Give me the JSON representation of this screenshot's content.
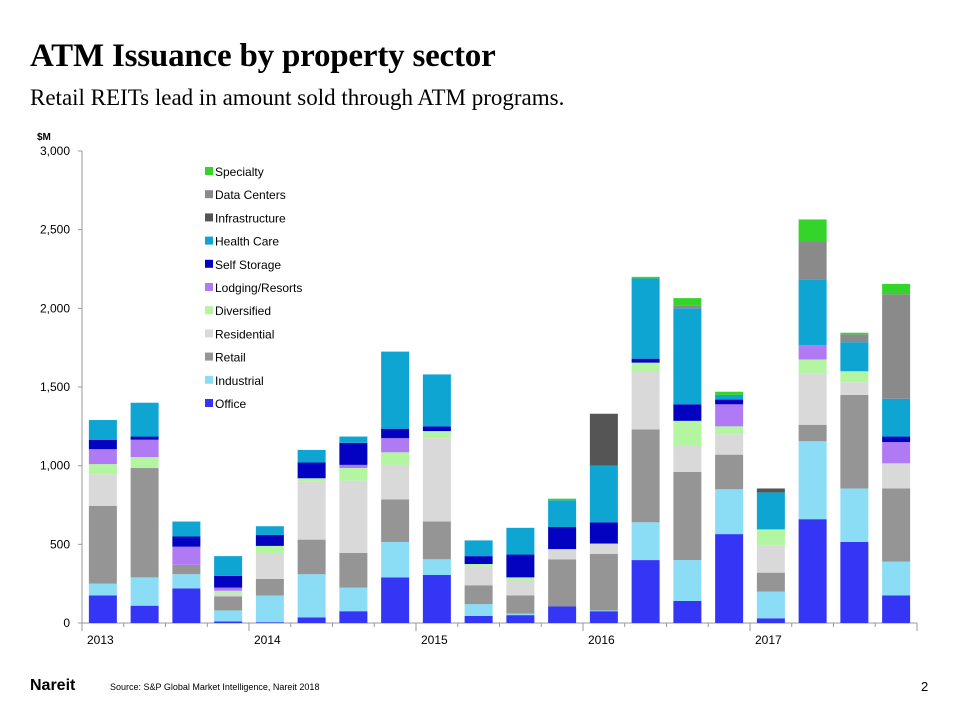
{
  "slide": {
    "title": "ATM Issuance by property sector",
    "subtitle": "Retail REITs lead in amount sold through ATM programs.",
    "logo": "Nareit",
    "source": "Source: S&P Global Market Intelligence, Nareit 2018",
    "page_number": "2"
  },
  "chart_data": {
    "type": "bar",
    "stacked": true,
    "ylabel": "$M",
    "ylim": [
      0,
      3000
    ],
    "yticks": [
      0,
      500,
      1000,
      1500,
      2000,
      2500,
      3000
    ],
    "ytick_labels": [
      "0",
      "500",
      "1,000",
      "1,500",
      "2,000",
      "2,500",
      "3,000"
    ],
    "x_tick_labels": [
      {
        "label": "2013",
        "index": 0
      },
      {
        "label": "2014",
        "index": 4
      },
      {
        "label": "2015",
        "index": 8
      },
      {
        "label": "2016",
        "index": 12
      },
      {
        "label": "2017",
        "index": 16
      }
    ],
    "legend_position": "top-left",
    "series": [
      {
        "name": "Office",
        "color": "#3535f5",
        "values": [
          175,
          110,
          220,
          10,
          5,
          35,
          75,
          290,
          305,
          45,
          50,
          105,
          75,
          400,
          140,
          565,
          30,
          660,
          515,
          175
        ]
      },
      {
        "name": "Industrial",
        "color": "#8bdcf5",
        "values": [
          75,
          180,
          90,
          70,
          170,
          275,
          150,
          225,
          100,
          75,
          10,
          0,
          5,
          240,
          260,
          285,
          170,
          495,
          340,
          215
        ]
      },
      {
        "name": "Retail",
        "color": "#959595",
        "values": [
          495,
          695,
          60,
          90,
          105,
          220,
          220,
          270,
          240,
          120,
          115,
          300,
          360,
          590,
          560,
          220,
          120,
          105,
          595,
          465
        ]
      },
      {
        "name": "Residential",
        "color": "#d9d9d9",
        "values": [
          200,
          0,
          0,
          20,
          165,
          370,
          460,
          220,
          530,
          120,
          95,
          65,
          65,
          365,
          165,
          130,
          175,
          325,
          80,
          160
        ]
      },
      {
        "name": "Diversified",
        "color": "#b3f5a1",
        "values": [
          65,
          70,
          0,
          15,
          45,
          20,
          80,
          80,
          45,
          15,
          20,
          0,
          0,
          60,
          160,
          50,
          100,
          90,
          70,
          0
        ]
      },
      {
        "name": "Lodging/Resorts",
        "color": "#b07af5",
        "values": [
          95,
          110,
          115,
          20,
          0,
          0,
          20,
          90,
          0,
          0,
          0,
          0,
          0,
          0,
          0,
          140,
          0,
          90,
          0,
          135
        ]
      },
      {
        "name": "Self Storage",
        "color": "#0202c0",
        "values": [
          60,
          20,
          65,
          75,
          70,
          100,
          140,
          60,
          30,
          50,
          145,
          140,
          135,
          25,
          105,
          30,
          0,
          0,
          0,
          35
        ]
      },
      {
        "name": "Health Care",
        "color": "#0fa5d3",
        "values": [
          125,
          215,
          95,
          125,
          55,
          80,
          40,
          490,
          330,
          100,
          170,
          170,
          360,
          510,
          610,
          30,
          235,
          420,
          185,
          240
        ]
      },
      {
        "name": "Infrastructure",
        "color": "#555555",
        "values": [
          0,
          0,
          0,
          0,
          0,
          0,
          0,
          0,
          0,
          0,
          0,
          0,
          330,
          0,
          0,
          0,
          25,
          0,
          0,
          0
        ]
      },
      {
        "name": "Data Centers",
        "color": "#8a8a8a",
        "values": [
          0,
          0,
          0,
          0,
          0,
          0,
          0,
          0,
          0,
          0,
          0,
          0,
          0,
          0,
          20,
          0,
          0,
          240,
          50,
          665
        ]
      },
      {
        "name": "Specialty",
        "color": "#34d42a",
        "values": [
          0,
          0,
          0,
          0,
          0,
          0,
          0,
          0,
          0,
          0,
          0,
          10,
          0,
          10,
          45,
          20,
          0,
          140,
          10,
          65
        ]
      }
    ]
  }
}
